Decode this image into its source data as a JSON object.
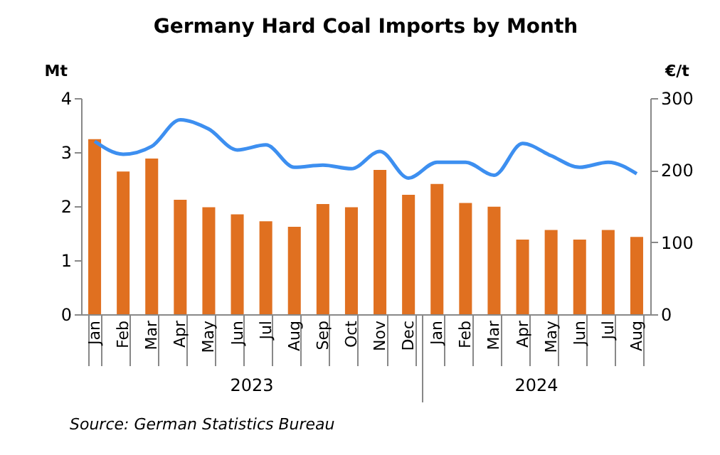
{
  "chart_data": {
    "type": "bar",
    "title": "Germany Hard Coal Imports by Month",
    "ylabel": "Mt",
    "y2label": "€/t",
    "categories": [
      "Jan",
      "Feb",
      "Mar",
      "Apr",
      "May",
      "Jun",
      "Jul",
      "Aug",
      "Sep",
      "Oct",
      "Nov",
      "Dec",
      "Jan",
      "Feb",
      "Mar",
      "Apr",
      "May",
      "Jun",
      "Jul",
      "Aug"
    ],
    "series": [
      {
        "color": "#e07020",
        "values": [
          3.24,
          2.64,
          2.88,
          2.12,
          1.98,
          1.85,
          1.72,
          1.62,
          2.04,
          1.98,
          2.67,
          2.21,
          2.41,
          2.06,
          1.99,
          1.38,
          1.56,
          1.38,
          1.56,
          1.43
        ]
      },
      {
        "type": "line",
        "axis": "y2",
        "color": "#3d8ff0",
        "values": [
          240,
          222,
          233,
          270,
          257,
          228,
          235,
          204,
          207,
          202,
          226,
          189,
          211,
          211,
          193,
          237,
          220,
          204,
          211,
          195
        ]
      }
    ],
    "ylim": [
      0,
      4
    ],
    "yticks": [
      0,
      1,
      2,
      3,
      4
    ],
    "y2lim": [
      0,
      300
    ],
    "y2ticks": [
      0,
      100,
      200,
      300
    ],
    "grid": false,
    "marker": "none",
    "line_style": "solid",
    "annotations": [
      "2023",
      "2024",
      "Source:  German Statistics Bureau"
    ]
  }
}
